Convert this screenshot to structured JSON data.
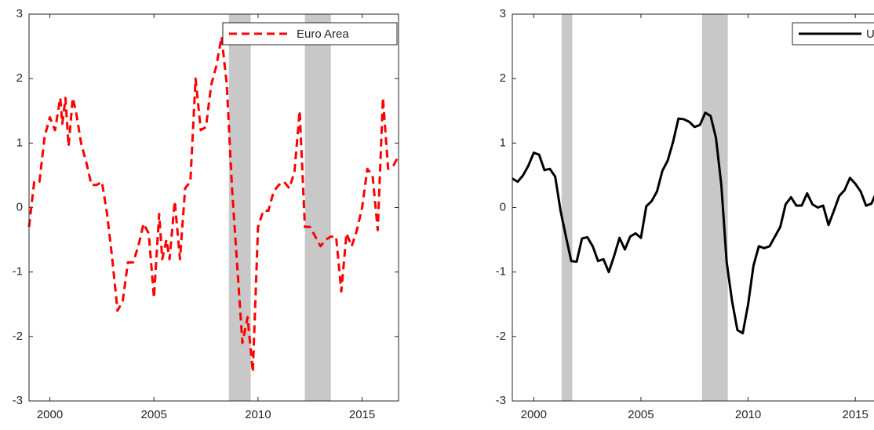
{
  "chart_data": [
    {
      "type": "line",
      "xlim": [
        1999,
        2016.75
      ],
      "ylim": [
        -3,
        3
      ],
      "xticks": [
        2000,
        2005,
        2010,
        2015
      ],
      "yticks": [
        -3,
        -2,
        -1,
        0,
        1,
        2,
        3
      ],
      "legend": "northeast",
      "shaded": [
        [
          2008.6,
          2009.65
        ],
        [
          2012.25,
          2013.5
        ]
      ],
      "shade_color": "#c8c8c8",
      "x": [
        1999.0,
        1999.25,
        1999.5,
        1999.75,
        2000.0,
        2000.25,
        2000.5,
        2000.6,
        2000.75,
        2000.9,
        2001.1,
        2001.25,
        2001.5,
        2001.75,
        2002.0,
        2002.25,
        2002.5,
        2002.75,
        2003.0,
        2003.25,
        2003.5,
        2003.75,
        2004.0,
        2004.25,
        2004.5,
        2004.75,
        2005.0,
        2005.25,
        2005.4,
        2005.6,
        2005.75,
        2006.0,
        2006.25,
        2006.5,
        2006.75,
        2007.0,
        2007.25,
        2007.5,
        2007.75,
        2008.0,
        2008.25,
        2008.5,
        2008.75,
        2009.0,
        2009.25,
        2009.5,
        2009.75,
        2010.0,
        2010.25,
        2010.5,
        2010.75,
        2011.0,
        2011.25,
        2011.5,
        2011.75,
        2012.0,
        2012.25,
        2012.5,
        2012.75,
        2013.0,
        2013.25,
        2013.5,
        2013.75,
        2014.0,
        2014.25,
        2014.5,
        2014.75,
        2015.0,
        2015.25,
        2015.5,
        2015.75,
        2016.0,
        2016.25,
        2016.5,
        2016.75
      ],
      "series": [
        {
          "name": "Euro Area",
          "color": "#ff0000",
          "dash": true,
          "values": [
            -0.3,
            0.4,
            0.4,
            1.1,
            1.4,
            1.2,
            1.7,
            1.3,
            1.7,
            0.95,
            1.7,
            1.5,
            1.0,
            0.7,
            0.35,
            0.35,
            0.4,
            -0.1,
            -0.8,
            -1.6,
            -1.45,
            -0.85,
            -0.85,
            -0.6,
            -0.25,
            -0.4,
            -1.4,
            -0.1,
            -0.8,
            -0.5,
            -0.8,
            0.1,
            -0.8,
            0.3,
            0.4,
            2.0,
            1.2,
            1.25,
            1.9,
            2.2,
            2.65,
            1.9,
            0.3,
            -0.9,
            -2.1,
            -1.7,
            -2.55,
            -0.3,
            -0.05,
            -0.05,
            0.25,
            0.35,
            0.4,
            0.3,
            0.55,
            1.5,
            -0.3,
            -0.3,
            -0.45,
            -0.6,
            -0.5,
            -0.45,
            -0.45,
            -1.3,
            -0.4,
            -0.6,
            -0.35,
            0.0,
            0.6,
            0.5,
            -0.35,
            1.7,
            0.6,
            0.65,
            0.8
          ]
        }
      ]
    },
    {
      "type": "line",
      "xlim": [
        1999,
        2016.75
      ],
      "ylim": [
        -3,
        3
      ],
      "xticks": [
        2000,
        2005,
        2010,
        2015
      ],
      "yticks": [
        -3,
        -2,
        -1,
        0,
        1,
        2,
        3
      ],
      "legend": "northeast",
      "shaded": [
        [
          2001.3,
          2001.8
        ],
        [
          2007.85,
          2009.05
        ]
      ],
      "shade_color": "#c8c8c8",
      "x": [
        1999.0,
        1999.25,
        1999.5,
        1999.75,
        2000.0,
        2000.25,
        2000.5,
        2000.75,
        2001.0,
        2001.25,
        2001.5,
        2001.75,
        2002.0,
        2002.25,
        2002.5,
        2002.75,
        2003.0,
        2003.25,
        2003.5,
        2003.75,
        2004.0,
        2004.25,
        2004.5,
        2004.75,
        2005.0,
        2005.25,
        2005.5,
        2005.75,
        2006.0,
        2006.25,
        2006.5,
        2006.75,
        2007.0,
        2007.25,
        2007.5,
        2007.75,
        2008.0,
        2008.25,
        2008.5,
        2008.75,
        2009.0,
        2009.25,
        2009.5,
        2009.75,
        2010.0,
        2010.25,
        2010.5,
        2010.75,
        2011.0,
        2011.25,
        2011.5,
        2011.75,
        2012.0,
        2012.25,
        2012.5,
        2012.75,
        2013.0,
        2013.25,
        2013.5,
        2013.75,
        2014.0,
        2014.25,
        2014.5,
        2014.75,
        2015.0,
        2015.25,
        2015.5,
        2015.75,
        2016.0,
        2016.25,
        2016.5
      ],
      "series": [
        {
          "name": "US",
          "color": "#000000",
          "dash": false,
          "values": [
            0.45,
            0.4,
            0.5,
            0.65,
            0.85,
            0.82,
            0.58,
            0.6,
            0.48,
            -0.05,
            -0.45,
            -0.83,
            -0.84,
            -0.48,
            -0.46,
            -0.6,
            -0.83,
            -0.8,
            -1.0,
            -0.75,
            -0.47,
            -0.65,
            -0.45,
            -0.4,
            -0.47,
            0.02,
            0.1,
            0.25,
            0.57,
            0.73,
            1.02,
            1.38,
            1.37,
            1.33,
            1.25,
            1.28,
            1.47,
            1.42,
            1.08,
            0.35,
            -0.85,
            -1.45,
            -1.9,
            -1.95,
            -1.5,
            -0.9,
            -0.6,
            -0.63,
            -0.6,
            -0.45,
            -0.3,
            0.05,
            0.16,
            0.03,
            0.03,
            0.22,
            0.05,
            0.0,
            0.03,
            -0.27,
            -0.05,
            0.18,
            0.27,
            0.46,
            0.37,
            0.25,
            0.03,
            0.06,
            0.25,
            0.05,
            0.05
          ]
        }
      ]
    }
  ]
}
